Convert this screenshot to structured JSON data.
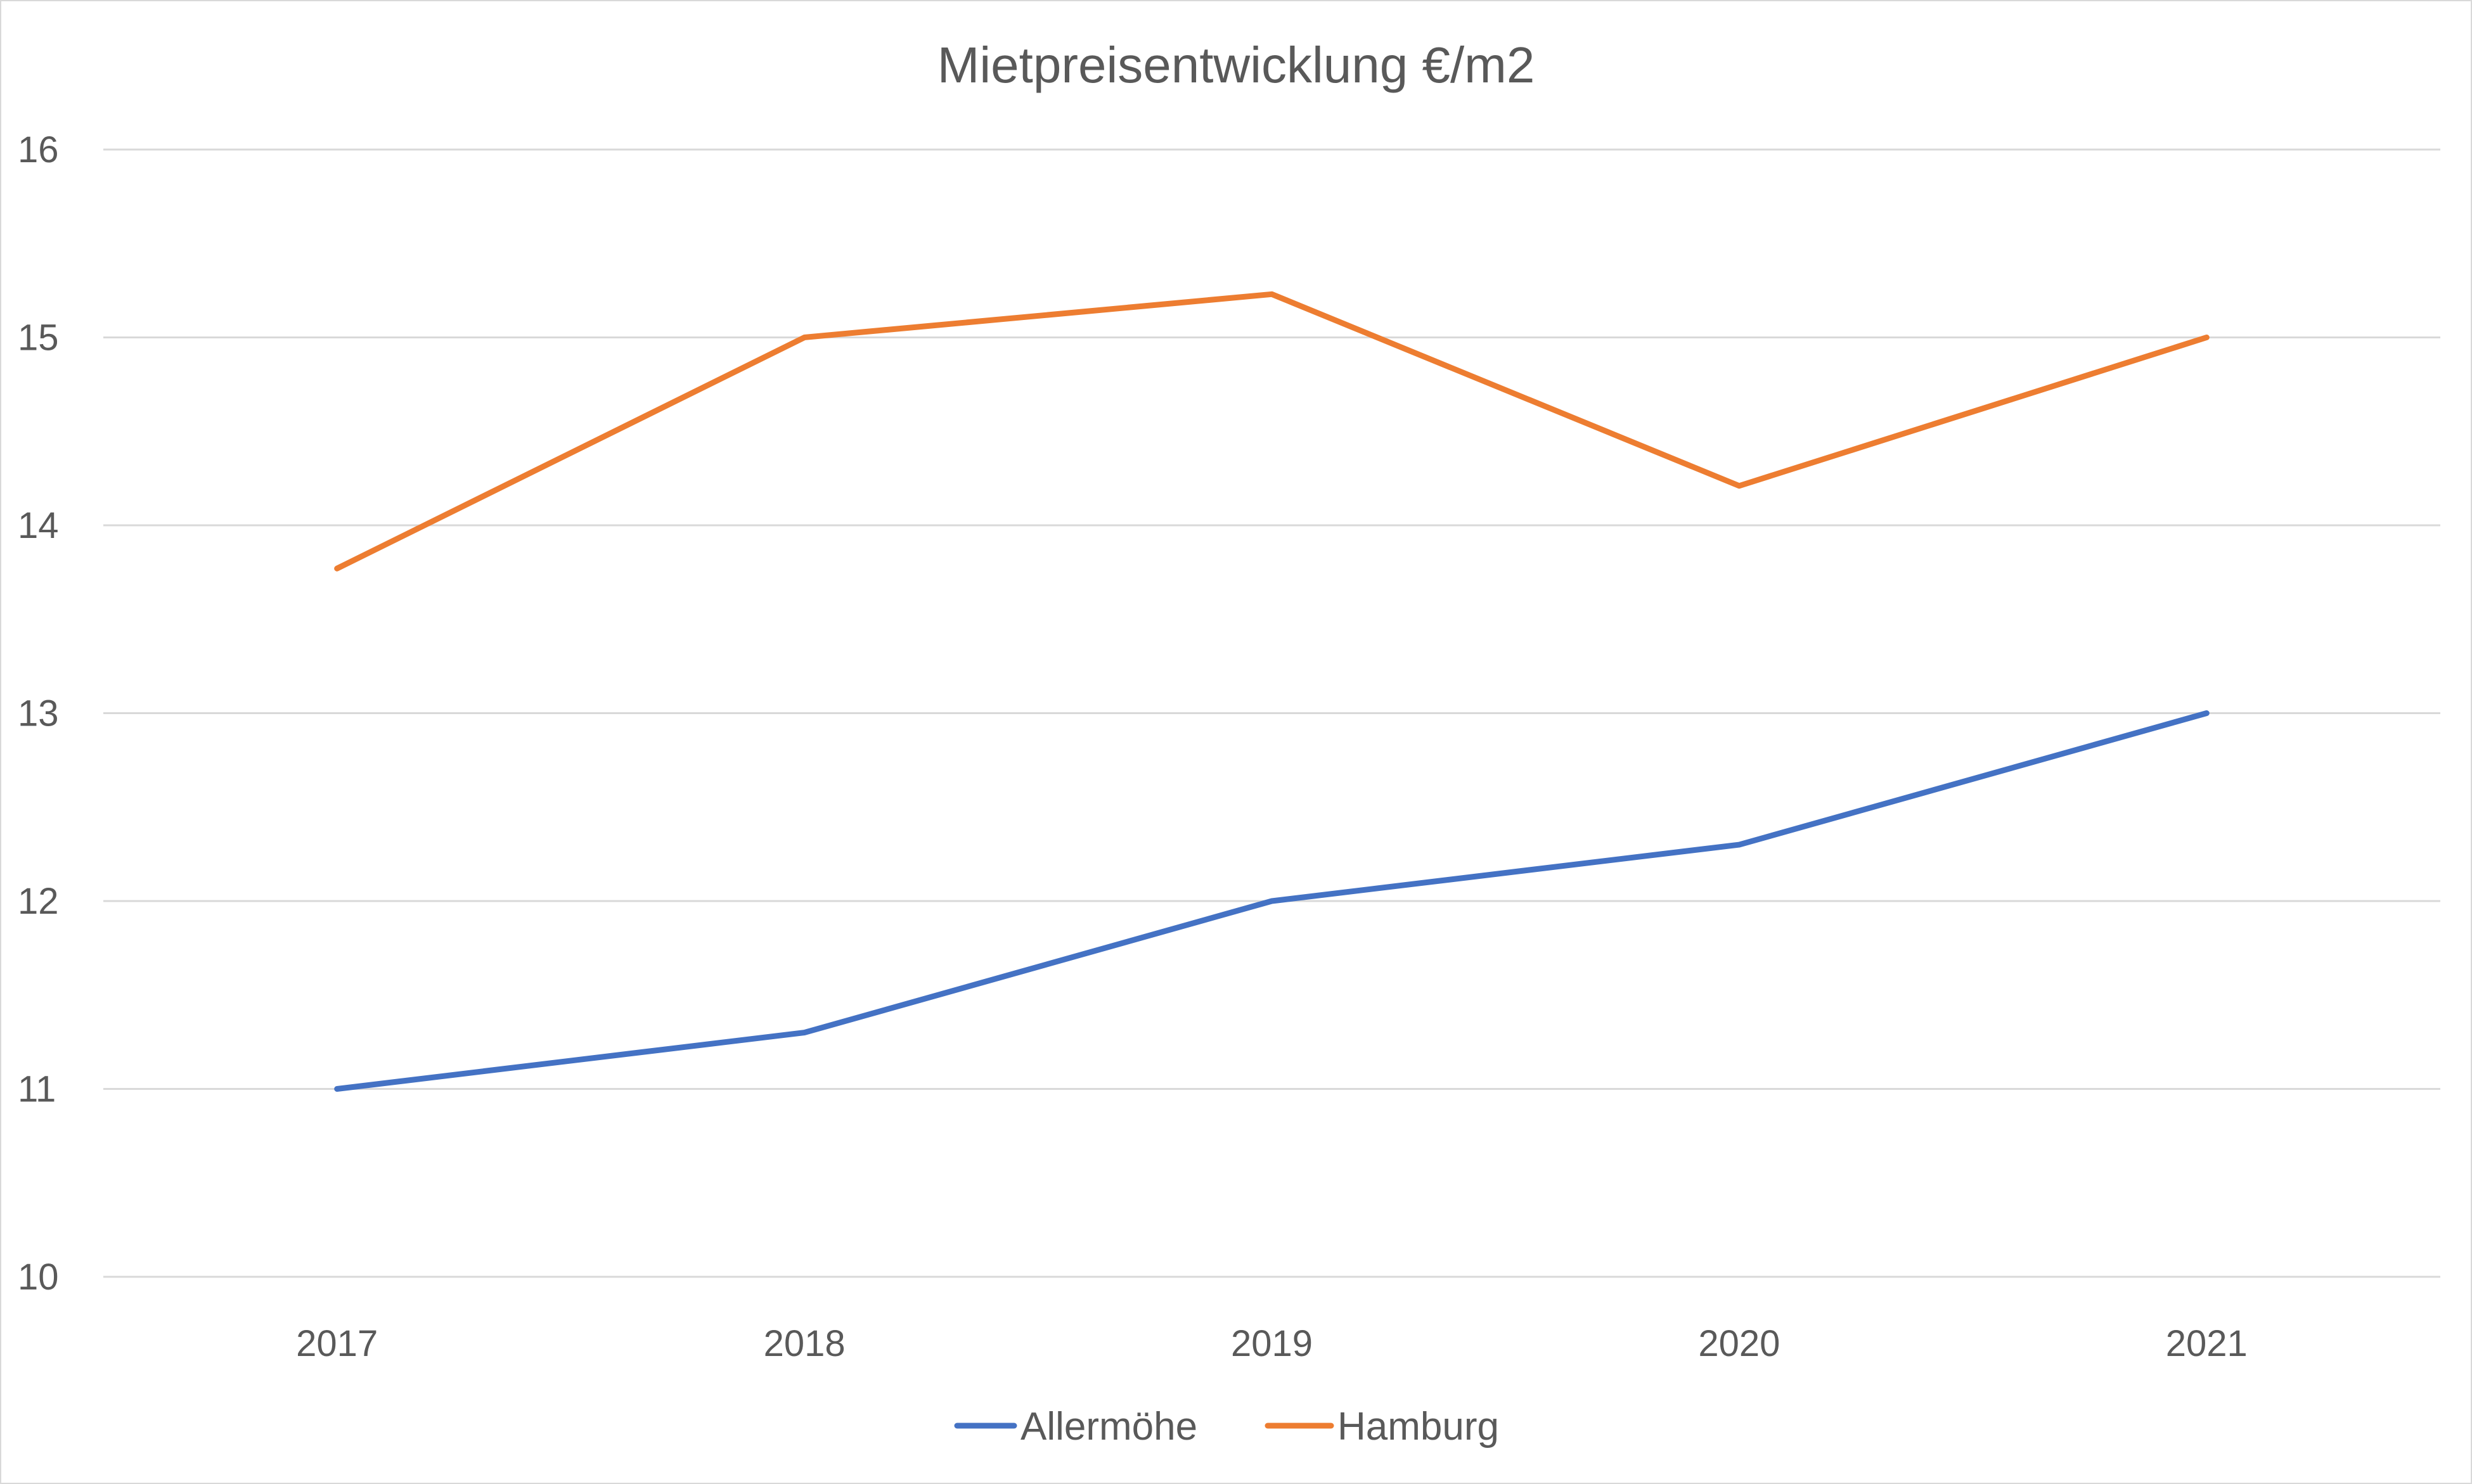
{
  "chart_data": {
    "type": "line",
    "title": "Mietpreisentwicklung  €/m2",
    "xlabel": "",
    "ylabel": "",
    "categories": [
      "2017",
      "2018",
      "2019",
      "2020",
      "2021"
    ],
    "y_ticks": [
      "10",
      "11",
      "12",
      "13",
      "14",
      "15",
      "16"
    ],
    "ylim": [
      10,
      16
    ],
    "grid": true,
    "legend_position": "bottom",
    "series": [
      {
        "name": "Allermöhe",
        "color": "#4472c4",
        "values": [
          11.0,
          11.3,
          12.0,
          12.3,
          13.0
        ]
      },
      {
        "name": "Hamburg",
        "color": "#ed7d31",
        "values": [
          13.77,
          15.0,
          15.23,
          14.21,
          15.0
        ]
      }
    ]
  }
}
